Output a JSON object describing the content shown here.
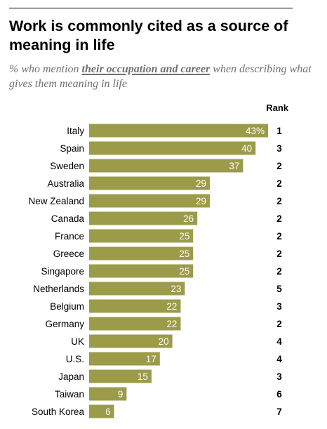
{
  "title": "Work is commonly cited as a source of meaning in life",
  "subtitle": {
    "prefix": "% who mention ",
    "emphasis": "their occupation and career",
    "suffix": " when describing what gives them meaning in life"
  },
  "colors": {
    "bar": "#9b9b4a",
    "bar_text": "#ffffff",
    "text": "#000000",
    "subtitle": "#707070"
  },
  "chart_data": {
    "type": "bar",
    "orientation": "horizontal",
    "categories": [
      "Italy",
      "Spain",
      "Sweden",
      "Australia",
      "New Zealand",
      "Canada",
      "France",
      "Greece",
      "Singapore",
      "Netherlands",
      "Belgium",
      "Germany",
      "UK",
      "U.S.",
      "Japan",
      "Taiwan",
      "South Korea"
    ],
    "values": [
      43,
      40,
      37,
      29,
      29,
      26,
      25,
      25,
      25,
      23,
      22,
      22,
      20,
      17,
      15,
      9,
      6
    ],
    "value_labels": [
      "43%",
      "40",
      "37",
      "29",
      "29",
      "26",
      "25",
      "25",
      "25",
      "23",
      "22",
      "22",
      "20",
      "17",
      "15",
      "9",
      "6"
    ],
    "rank_header": "Rank",
    "ranks": [
      "1",
      "3",
      "2",
      "2",
      "2",
      "2",
      "2",
      "2",
      "2",
      "5",
      "3",
      "2",
      "4",
      "4",
      "3",
      "6",
      "7"
    ],
    "xlim": [
      0,
      43
    ],
    "grid": false,
    "legend": "none"
  }
}
